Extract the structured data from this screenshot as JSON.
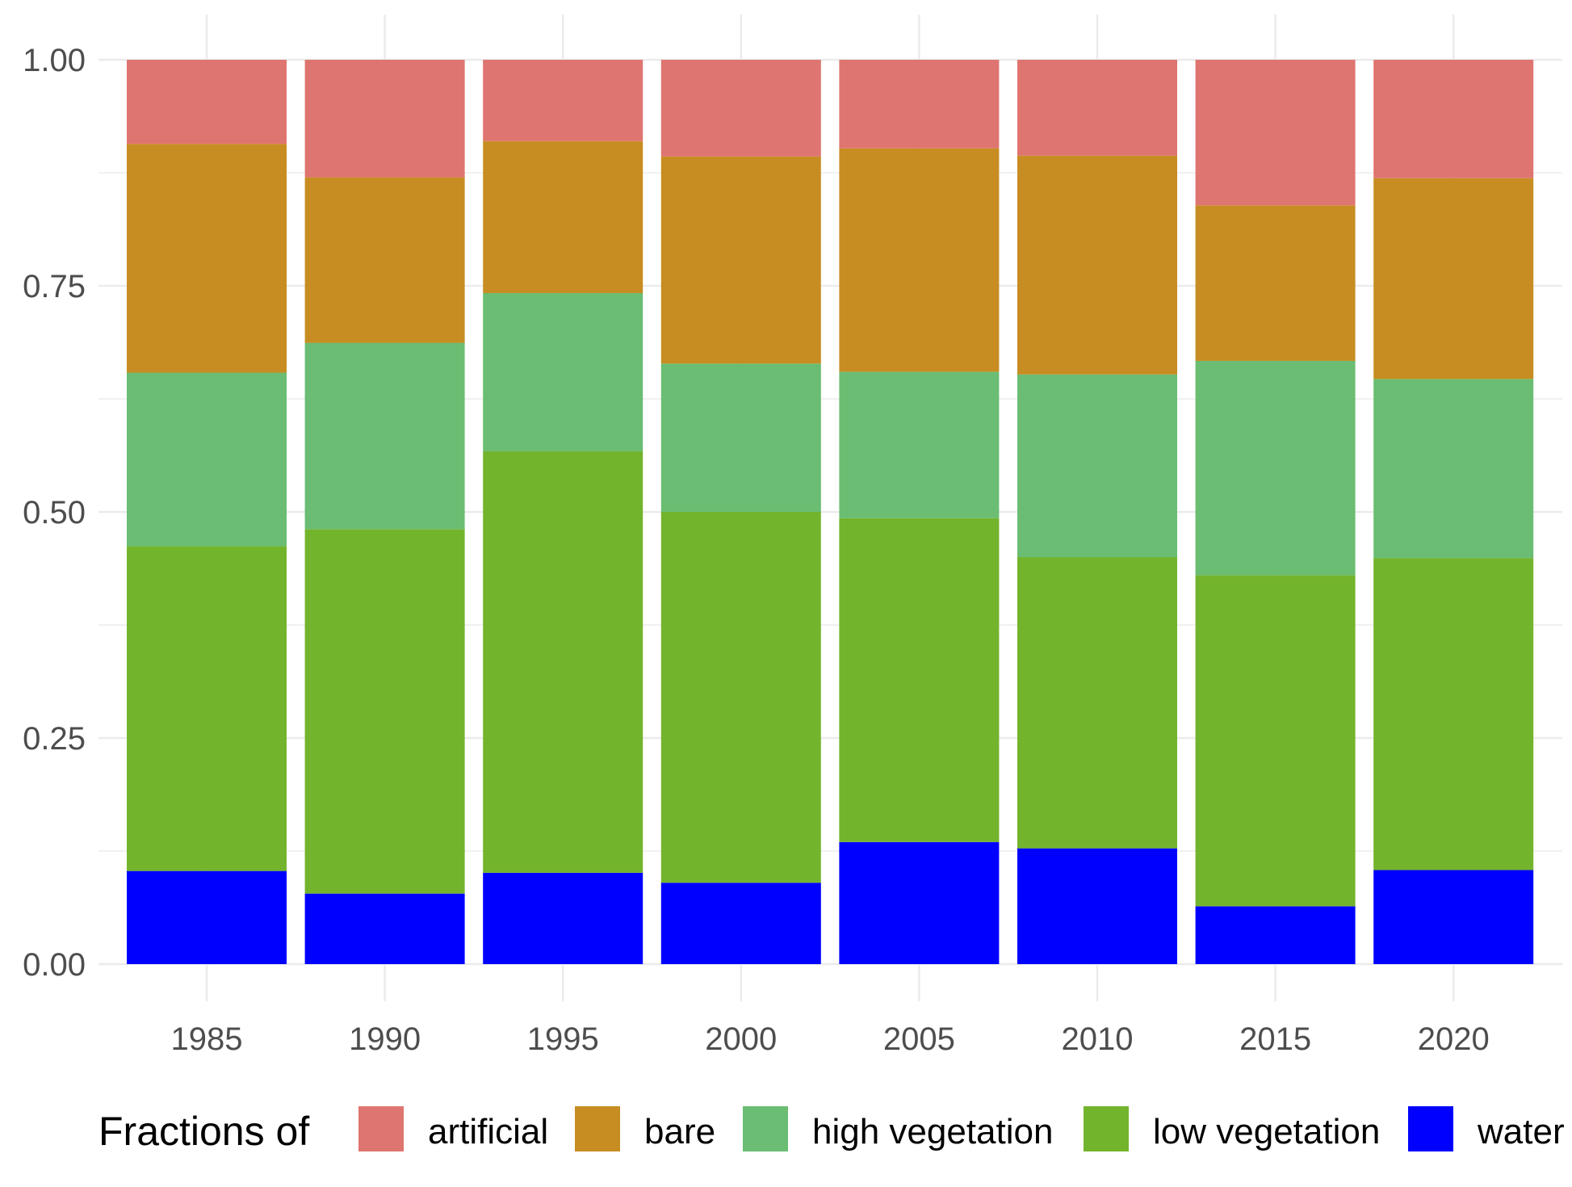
{
  "chart_data": {
    "type": "bar",
    "stacked": true,
    "categories": [
      "1985",
      "1990",
      "1995",
      "2000",
      "2005",
      "2010",
      "2015",
      "2020"
    ],
    "series": [
      {
        "name": "water",
        "color": "#0000FF",
        "values": [
          0.103,
          0.078,
          0.101,
          0.09,
          0.135,
          0.128,
          0.064,
          0.104
        ]
      },
      {
        "name": "low vegetation",
        "color": "#73B42D",
        "values": [
          0.359,
          0.403,
          0.466,
          0.41,
          0.358,
          0.322,
          0.366,
          0.345
        ]
      },
      {
        "name": "high vegetation",
        "color": "#6ABD72",
        "values": [
          0.192,
          0.206,
          0.175,
          0.164,
          0.162,
          0.202,
          0.237,
          0.198
        ]
      },
      {
        "name": "bare",
        "color": "#C78D22",
        "values": [
          0.253,
          0.183,
          0.168,
          0.229,
          0.247,
          0.242,
          0.172,
          0.222
        ]
      },
      {
        "name": "artificial",
        "color": "#DF7570",
        "values": [
          0.093,
          0.13,
          0.09,
          0.107,
          0.098,
          0.106,
          0.161,
          0.131
        ]
      }
    ],
    "legend_order": [
      "artificial",
      "bare",
      "high vegetation",
      "low vegetation",
      "water"
    ],
    "legend_title": "Fractions of",
    "legend_position": "bottom",
    "y_ticks": [
      "0.00",
      "0.25",
      "0.50",
      "0.75",
      "1.00"
    ],
    "ylim": [
      0,
      1
    ],
    "title": "",
    "xlabel": "",
    "ylabel": "",
    "grid": true,
    "background": "#FFFFFF",
    "grid_color": "#EBEBEB"
  }
}
